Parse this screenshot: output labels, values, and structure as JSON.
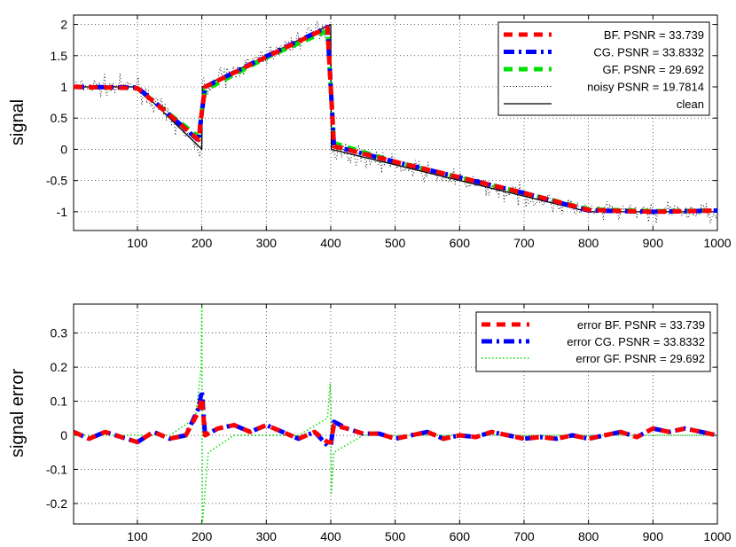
{
  "chart_data": [
    {
      "type": "line",
      "title": "",
      "xlabel": "",
      "ylabel": "signal",
      "xlim": [
        1,
        1000
      ],
      "ylim": [
        -1.3,
        2.15
      ],
      "grid": true,
      "legend_position": "top-right",
      "xticks": [
        100,
        200,
        300,
        400,
        500,
        600,
        700,
        800,
        900,
        1000
      ],
      "yticks": [
        -1,
        -0.5,
        0,
        0.5,
        1,
        1.5,
        2
      ],
      "ytick_labels": [
        "-1",
        "-0.5",
        "0",
        "0.5",
        "1",
        "1.5",
        "2"
      ],
      "series": [
        {
          "name": "BF.   PSNR = 33.739",
          "color": "#ff0000",
          "style": "dashed-thick",
          "description": "filtered signal",
          "x": [
            1,
            100,
            150,
            195,
            200,
            205,
            300,
            395,
            400,
            405,
            500,
            600,
            700,
            800,
            900,
            1000
          ],
          "y": [
            1.0,
            0.98,
            0.55,
            0.15,
            0.6,
            1.0,
            1.48,
            1.95,
            1.0,
            0.05,
            -0.2,
            -0.45,
            -0.7,
            -0.97,
            -1.0,
            -0.98
          ]
        },
        {
          "name": "CG.   PSNR = 33.8332",
          "color": "#0000ff",
          "style": "dashdot-thick",
          "x": [
            1,
            100,
            150,
            195,
            200,
            205,
            300,
            395,
            400,
            405,
            500,
            600,
            700,
            800,
            900,
            1000
          ],
          "y": [
            1.0,
            0.99,
            0.55,
            0.14,
            0.6,
            1.0,
            1.49,
            1.96,
            1.0,
            0.05,
            -0.2,
            -0.45,
            -0.7,
            -0.98,
            -1.0,
            -0.98
          ]
        },
        {
          "name": "GF.   PSNR = 29.692",
          "color": "#00e000",
          "style": "dashed-thick",
          "x": [
            1,
            100,
            150,
            195,
            200,
            205,
            300,
            395,
            400,
            405,
            500,
            600,
            700,
            800,
            900,
            1000
          ],
          "y": [
            1.0,
            0.98,
            0.56,
            0.2,
            0.6,
            0.95,
            1.47,
            1.9,
            1.0,
            0.1,
            -0.2,
            -0.45,
            -0.7,
            -0.96,
            -0.99,
            -0.98
          ]
        },
        {
          "name": "noisy PSNR = 19.7814",
          "color": "#000000",
          "style": "dotted-thin",
          "x": [
            1,
            1000
          ],
          "y": [
            1.0,
            -1.0
          ]
        },
        {
          "name": "clean",
          "color": "#000000",
          "style": "solid",
          "x": [
            1,
            100,
            200,
            201,
            400,
            401,
            800,
            1000
          ],
          "y": [
            1.0,
            1.0,
            0.0,
            1.0,
            2.0,
            0.0,
            -1.0,
            -1.0
          ]
        }
      ]
    },
    {
      "type": "line",
      "title": "",
      "xlabel": "",
      "ylabel": "signal error",
      "xlim": [
        1,
        1000
      ],
      "ylim": [
        -0.26,
        0.385
      ],
      "grid": true,
      "legend_position": "top-right",
      "xticks": [
        100,
        200,
        300,
        400,
        500,
        600,
        700,
        800,
        900,
        1000
      ],
      "yticks": [
        -0.2,
        -0.1,
        0,
        0.1,
        0.2,
        0.3
      ],
      "ytick_labels": [
        "-0.2",
        "-0.1",
        "0",
        "0.1",
        "0.2",
        "0.3"
      ],
      "series": [
        {
          "name": "error BF. PSNR = 33.739",
          "color": "#ff0000",
          "style": "dashed-thick",
          "x": [
            1,
            25,
            50,
            75,
            100,
            125,
            150,
            175,
            195,
            200,
            205,
            225,
            250,
            275,
            300,
            325,
            350,
            375,
            395,
            400,
            405,
            425,
            450,
            475,
            500,
            525,
            550,
            575,
            600,
            625,
            650,
            675,
            700,
            725,
            750,
            775,
            800,
            825,
            850,
            875,
            900,
            925,
            950,
            975,
            1000
          ],
          "y": [
            0.01,
            -0.01,
            0.01,
            -0.005,
            -0.02,
            0.01,
            -0.01,
            0.0,
            0.07,
            0.11,
            0.0,
            0.02,
            0.03,
            0.01,
            0.03,
            0.01,
            -0.01,
            0.01,
            -0.02,
            -0.02,
            0.03,
            0.02,
            0.005,
            0.005,
            -0.01,
            0.0,
            0.01,
            -0.01,
            0.0,
            -0.005,
            0.01,
            0.0,
            -0.01,
            -0.005,
            -0.01,
            0.0,
            -0.01,
            0.0,
            0.01,
            -0.005,
            0.02,
            0.01,
            0.02,
            0.01,
            0.0
          ]
        },
        {
          "name": "error CG. PSNR = 33.8332",
          "color": "#0000ff",
          "style": "dashdot-thick",
          "x": [
            1,
            25,
            50,
            75,
            100,
            125,
            150,
            175,
            195,
            200,
            205,
            225,
            250,
            275,
            300,
            325,
            350,
            375,
            395,
            400,
            405,
            425,
            450,
            475,
            500,
            525,
            550,
            575,
            600,
            625,
            650,
            675,
            700,
            725,
            750,
            775,
            800,
            825,
            850,
            875,
            900,
            925,
            950,
            975,
            1000
          ],
          "y": [
            0.01,
            -0.01,
            0.01,
            -0.005,
            -0.02,
            0.01,
            -0.01,
            0.0,
            0.08,
            0.13,
            0.0,
            0.02,
            0.03,
            0.01,
            0.03,
            0.01,
            -0.01,
            0.01,
            -0.03,
            -0.03,
            0.04,
            0.02,
            0.005,
            0.005,
            -0.01,
            0.0,
            0.01,
            -0.01,
            0.0,
            -0.005,
            0.01,
            0.0,
            -0.01,
            -0.005,
            -0.01,
            0.0,
            -0.01,
            0.0,
            0.01,
            -0.005,
            0.02,
            0.01,
            0.02,
            0.01,
            0.0
          ]
        },
        {
          "name": "error GF. PSNR = 29.692",
          "color": "#00e000",
          "style": "dotted",
          "x": [
            1,
            50,
            100,
            150,
            190,
            199,
            200,
            201,
            210,
            250,
            300,
            350,
            395,
            399,
            400,
            401,
            405,
            450,
            500,
            600,
            700,
            800,
            900,
            1000
          ],
          "y": [
            0.0,
            0.0,
            0.0,
            0.0,
            0.05,
            0.2,
            0.38,
            -0.26,
            -0.05,
            0.0,
            0.0,
            0.0,
            0.05,
            0.15,
            0.12,
            -0.17,
            -0.05,
            0.0,
            0.0,
            0.0,
            0.0,
            0.0,
            0.0,
            0.0
          ]
        }
      ]
    }
  ]
}
